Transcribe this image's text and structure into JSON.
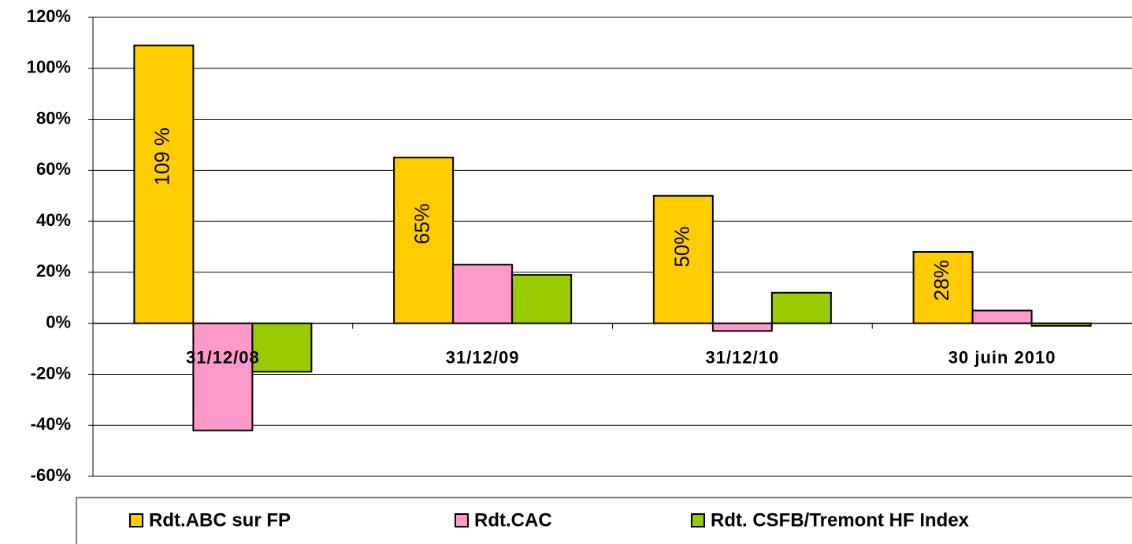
{
  "chart_data": {
    "type": "bar",
    "categories": [
      "31/12/08",
      "31/12/09",
      "31/12/10",
      "30 juin 2010"
    ],
    "series": [
      {
        "name": "Rdt.ABC sur FP",
        "color": "#FFCC00",
        "values": [
          109,
          65,
          50,
          28
        ],
        "value_labels": [
          "109 %",
          "65%",
          "50%",
          "28%"
        ]
      },
      {
        "name": "Rdt.CAC",
        "color": "#FF99CC",
        "values": [
          -42,
          23,
          -3,
          5
        ]
      },
      {
        "name": "Rdt. CSFB/Tremont HF Index",
        "color": "#99CC00",
        "values": [
          -19,
          19,
          12,
          -1
        ]
      }
    ],
    "ylim": [
      -60,
      120
    ],
    "yticks": [
      {
        "value": -60,
        "label": "-60%"
      },
      {
        "value": -40,
        "label": "-40%"
      },
      {
        "value": -20,
        "label": "-20%"
      },
      {
        "value": 0,
        "label": "0%"
      },
      {
        "value": 20,
        "label": "20%"
      },
      {
        "value": 40,
        "label": "40%"
      },
      {
        "value": 60,
        "label": "60%"
      },
      {
        "value": 80,
        "label": "80%"
      },
      {
        "value": 100,
        "label": "100%"
      },
      {
        "value": 120,
        "label": "120%"
      }
    ],
    "grid": true,
    "legend": "bottom"
  }
}
